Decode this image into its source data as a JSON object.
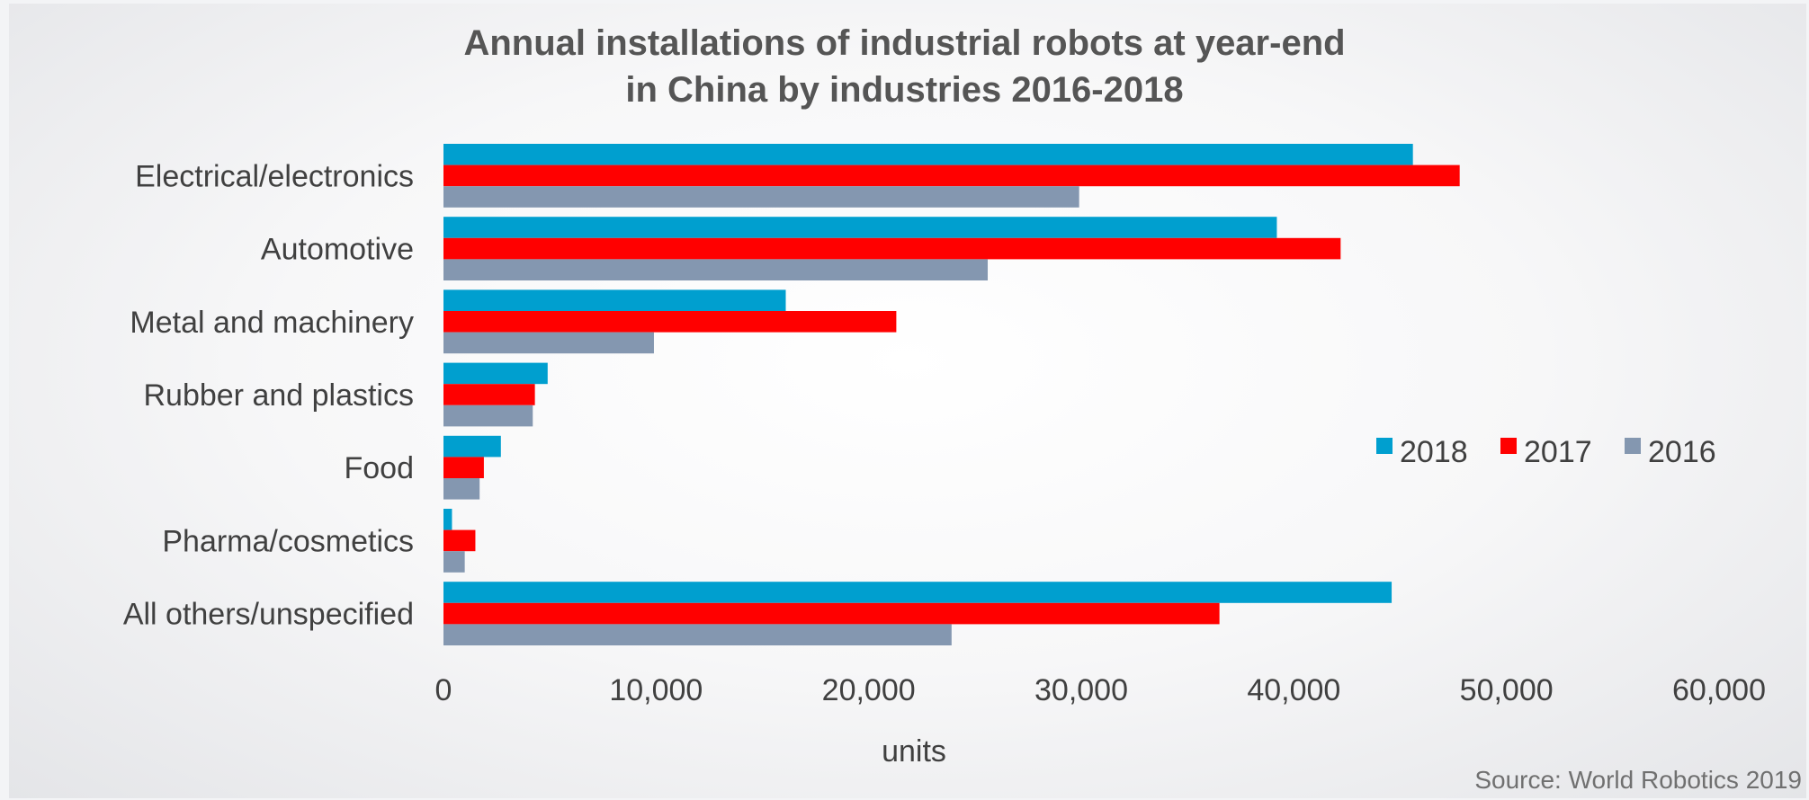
{
  "chart_data": {
    "type": "bar",
    "orientation": "horizontal",
    "title_line1": "Annual installations of industrial robots at year-end",
    "title_line2": "in China by industries 2016-2018",
    "categories": [
      "Electrical/electronics",
      "Automotive",
      "Metal and machinery",
      "Rubber and plastics",
      "Food",
      "Pharma/cosmetics",
      "All others/unspecified"
    ],
    "series": [
      {
        "name": "2018",
        "color": "#009fcf",
        "values": [
          45600,
          39200,
          16100,
          4900,
          2700,
          400,
          44600
        ]
      },
      {
        "name": "2017",
        "color": "#ff0000",
        "values": [
          47800,
          42200,
          21300,
          4300,
          1900,
          1500,
          36500
        ]
      },
      {
        "name": "2016",
        "color": "#8497b0",
        "values": [
          29900,
          25600,
          9900,
          4200,
          1700,
          1000,
          23900
        ]
      }
    ],
    "xlabel": "units",
    "xlim": [
      0,
      60000
    ],
    "xticks": [
      "0",
      "10,000",
      "20,000",
      "30,000",
      "40,000",
      "50,000",
      "60,000"
    ],
    "legend_position": "right",
    "grid": false,
    "source": "Source: World Robotics 2019"
  }
}
